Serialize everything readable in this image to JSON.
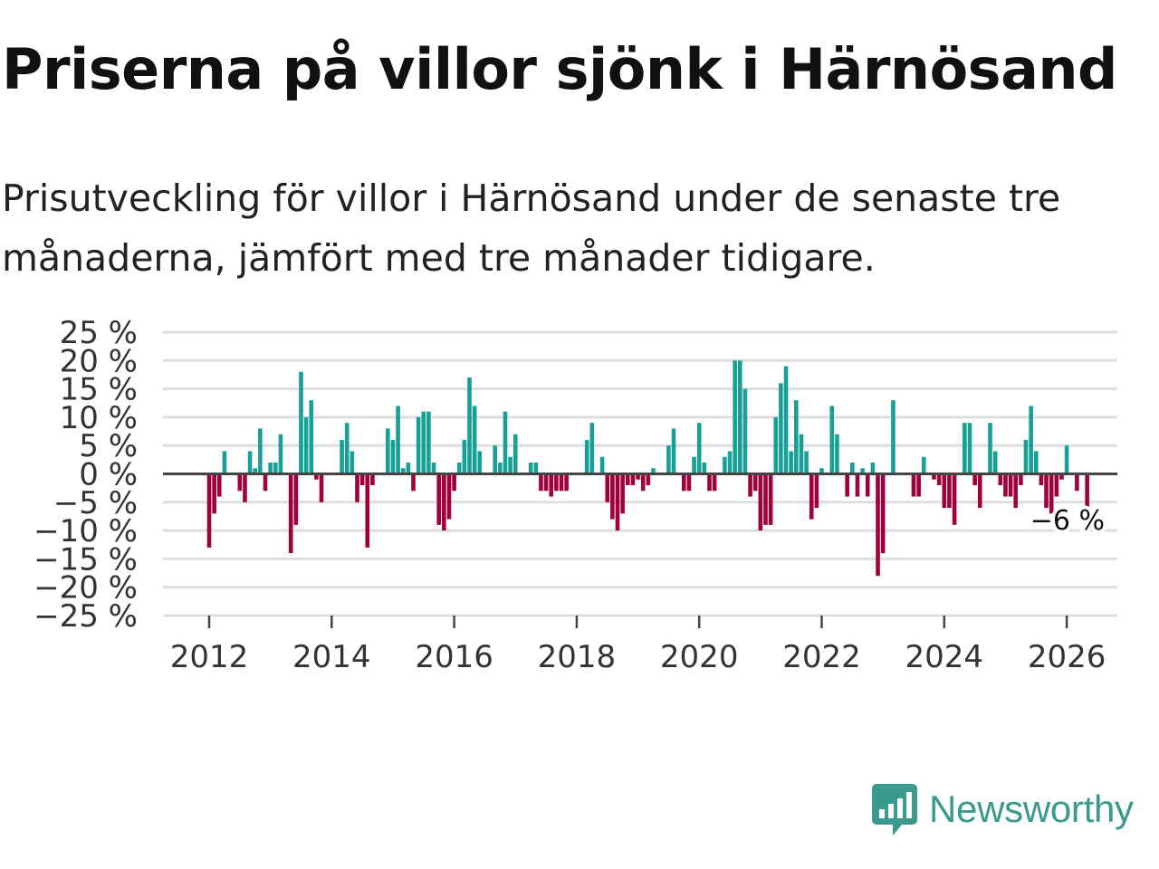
{
  "title": "Priserna på villor sjönk i Härnösand",
  "subtitle": "Prisutveckling för villor i Härnösand under de senaste tre månaderna, jämfört med tre månader tidigare.",
  "brand": {
    "name": "Newsworthy",
    "color": "#3a9a8d"
  },
  "colors": {
    "positive": "#17a096",
    "negative": "#a0003c",
    "grid": "#dddddd",
    "zero": "#444444"
  },
  "chart_data": {
    "type": "bar",
    "title": "Priserna på villor sjönk i Härnösand",
    "xlabel": "",
    "ylabel": "",
    "ylim": [
      -25,
      25
    ],
    "yticks": [
      25,
      20,
      15,
      10,
      5,
      0,
      -5,
      -10,
      -15,
      -20,
      -25
    ],
    "ytick_labels": [
      "25 %",
      "20 %",
      "15 %",
      "10 %",
      "5 %",
      "0 %",
      "−5 %",
      "−10 %",
      "−15 %",
      "−20 %",
      "−25 %"
    ],
    "xticks": [
      "2012",
      "2014",
      "2016",
      "2018",
      "2020",
      "2022",
      "2024",
      "2026"
    ],
    "x_start": "2012-01",
    "x_step": "month",
    "values": [
      -13,
      -7,
      -4,
      4,
      0,
      0,
      -3,
      -5,
      4,
      1,
      8,
      -3,
      2,
      2,
      7,
      0,
      -14,
      -9,
      18,
      10,
      13,
      -1,
      -5,
      0,
      0,
      0,
      6,
      9,
      4,
      -5,
      -2,
      -13,
      -2,
      0,
      0,
      8,
      6,
      12,
      1,
      2,
      -3,
      10,
      11,
      11,
      2,
      -9,
      -10,
      -8,
      -3,
      2,
      6,
      17,
      12,
      4,
      0,
      0,
      5,
      2,
      11,
      3,
      7,
      0,
      0,
      2,
      2,
      -3,
      -3,
      -4,
      -3,
      -3,
      -3,
      0,
      0,
      0,
      6,
      9,
      0,
      3,
      -5,
      -8,
      -10,
      -7,
      -2,
      -2,
      -1,
      -3,
      -2,
      1,
      0,
      0,
      5,
      8,
      0,
      -3,
      -3,
      3,
      9,
      2,
      -3,
      -3,
      0,
      3,
      4,
      20,
      20,
      15,
      -4,
      -3,
      -10,
      -9,
      -9,
      10,
      16,
      19,
      4,
      13,
      7,
      4,
      -8,
      -6,
      1,
      0,
      12,
      7,
      0,
      -4,
      2,
      -4,
      1,
      -4,
      2,
      -18,
      -14,
      0,
      13,
      0,
      0,
      0,
      -4,
      -4,
      3,
      0,
      -1,
      -2,
      -6,
      -6,
      -9,
      0,
      9,
      9,
      -2,
      -6,
      0,
      9,
      4,
      -2,
      -4,
      -4,
      -6,
      -2,
      6,
      12,
      4,
      -2,
      -6,
      -7,
      -4,
      -1,
      5,
      0,
      -3,
      0,
      -6
    ],
    "last_value_label": "−6 %"
  }
}
